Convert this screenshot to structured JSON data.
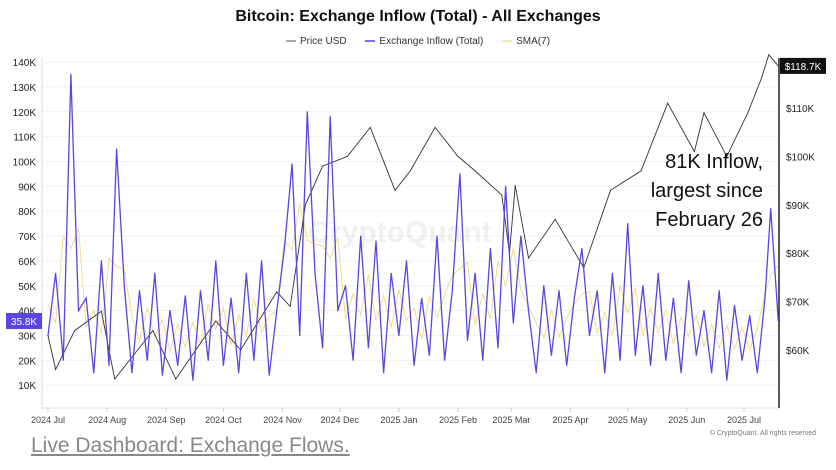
{
  "chart_data": {
    "type": "line",
    "title": "Bitcoin: Exchange Inflow (Total) - All Exchanges",
    "legend": [
      "Price USD",
      "Exchange Inflow (Total)",
      "SMA(7)"
    ],
    "legend_placement": "top-center",
    "colors": {
      "price": "#333333",
      "inflow": "#5b45e0",
      "sma": "#f0dc8c"
    },
    "grid": true,
    "x_ticks": [
      "2024 Jul",
      "2024 Aug",
      "2024 Sep",
      "2024 Oct",
      "2024 Nov",
      "2024 Dec",
      "2025 Jan",
      "2025 Feb",
      "2025 Mar",
      "2025 Apr",
      "2025 May",
      "2025 Jun",
      "2025 Jul"
    ],
    "x_tick_dates": [
      "2024-07-01",
      "2024-08-01",
      "2024-09-01",
      "2024-10-01",
      "2024-11-01",
      "2024-12-01",
      "2025-01-01",
      "2025-02-01",
      "2025-03-01",
      "2025-04-01",
      "2025-05-01",
      "2025-06-01",
      "2025-07-01"
    ],
    "y_left_ticks": [
      "10K",
      "20K",
      "30K",
      "40K",
      "50K",
      "60K",
      "70K",
      "80K",
      "90K",
      "100K",
      "110K",
      "120K",
      "130K",
      "140K"
    ],
    "y_left_range": [
      0,
      140000
    ],
    "y_right_ticks": [
      "$60K",
      "$70K",
      "$80K",
      "$90K",
      "$100K",
      "$110K"
    ],
    "y_right_range": [
      53000,
      126000
    ],
    "current_inflow_label": "35.8K",
    "current_price_label": "$118.7K",
    "series": [
      {
        "name": "Exchange Inflow (Total)",
        "axis": "left",
        "points": [
          [
            "2024-07-01",
            30000
          ],
          [
            "2024-07-05",
            55000
          ],
          [
            "2024-07-09",
            20000
          ],
          [
            "2024-07-13",
            135000
          ],
          [
            "2024-07-17",
            40000
          ],
          [
            "2024-07-21",
            45000
          ],
          [
            "2024-07-25",
            15000
          ],
          [
            "2024-07-29",
            60000
          ],
          [
            "2024-08-02",
            18000
          ],
          [
            "2024-08-06",
            105000
          ],
          [
            "2024-08-10",
            50000
          ],
          [
            "2024-08-14",
            15000
          ],
          [
            "2024-08-18",
            48000
          ],
          [
            "2024-08-22",
            20000
          ],
          [
            "2024-08-26",
            55000
          ],
          [
            "2024-08-30",
            14000
          ],
          [
            "2024-09-03",
            40000
          ],
          [
            "2024-09-07",
            18000
          ],
          [
            "2024-09-11",
            46000
          ],
          [
            "2024-09-15",
            12000
          ],
          [
            "2024-09-19",
            48000
          ],
          [
            "2024-09-23",
            20000
          ],
          [
            "2024-09-27",
            60000
          ],
          [
            "2024-10-01",
            18000
          ],
          [
            "2024-10-05",
            45000
          ],
          [
            "2024-10-09",
            15000
          ],
          [
            "2024-10-13",
            55000
          ],
          [
            "2024-10-17",
            20000
          ],
          [
            "2024-10-21",
            60000
          ],
          [
            "2024-10-25",
            14000
          ],
          [
            "2024-10-29",
            40000
          ],
          [
            "2024-11-02",
            65000
          ],
          [
            "2024-11-06",
            99000
          ],
          [
            "2024-11-10",
            30000
          ],
          [
            "2024-11-14",
            120000
          ],
          [
            "2024-11-18",
            55000
          ],
          [
            "2024-11-22",
            25000
          ],
          [
            "2024-11-26",
            118000
          ],
          [
            "2024-11-30",
            40000
          ],
          [
            "2024-12-04",
            50000
          ],
          [
            "2024-12-08",
            20000
          ],
          [
            "2024-12-12",
            70000
          ],
          [
            "2024-12-16",
            25000
          ],
          [
            "2024-12-20",
            68000
          ],
          [
            "2024-12-24",
            15000
          ],
          [
            "2024-12-28",
            55000
          ],
          [
            "2025-01-01",
            30000
          ],
          [
            "2025-01-05",
            60000
          ],
          [
            "2025-01-09",
            18000
          ],
          [
            "2025-01-13",
            45000
          ],
          [
            "2025-01-17",
            22000
          ],
          [
            "2025-01-21",
            70000
          ],
          [
            "2025-01-25",
            20000
          ],
          [
            "2025-01-29",
            48000
          ],
          [
            "2025-02-02",
            95000
          ],
          [
            "2025-02-06",
            28000
          ],
          [
            "2025-02-10",
            55000
          ],
          [
            "2025-02-14",
            20000
          ],
          [
            "2025-02-18",
            65000
          ],
          [
            "2025-02-22",
            25000
          ],
          [
            "2025-02-26",
            90000
          ],
          [
            "2025-03-02",
            35000
          ],
          [
            "2025-03-06",
            70000
          ],
          [
            "2025-03-10",
            40000
          ],
          [
            "2025-03-14",
            15000
          ],
          [
            "2025-03-18",
            50000
          ],
          [
            "2025-03-22",
            22000
          ],
          [
            "2025-03-26",
            48000
          ],
          [
            "2025-03-30",
            18000
          ],
          [
            "2025-04-03",
            45000
          ],
          [
            "2025-04-07",
            65000
          ],
          [
            "2025-04-11",
            30000
          ],
          [
            "2025-04-15",
            48000
          ],
          [
            "2025-04-19",
            15000
          ],
          [
            "2025-04-23",
            55000
          ],
          [
            "2025-04-27",
            20000
          ],
          [
            "2025-05-01",
            75000
          ],
          [
            "2025-05-05",
            22000
          ],
          [
            "2025-05-09",
            50000
          ],
          [
            "2025-05-13",
            18000
          ],
          [
            "2025-05-17",
            55000
          ],
          [
            "2025-05-21",
            20000
          ],
          [
            "2025-05-25",
            45000
          ],
          [
            "2025-05-29",
            15000
          ],
          [
            "2025-06-02",
            52000
          ],
          [
            "2025-06-06",
            22000
          ],
          [
            "2025-06-10",
            40000
          ],
          [
            "2025-06-14",
            15000
          ],
          [
            "2025-06-18",
            48000
          ],
          [
            "2025-06-22",
            12000
          ],
          [
            "2025-06-26",
            42000
          ],
          [
            "2025-06-30",
            20000
          ],
          [
            "2025-07-04",
            38000
          ],
          [
            "2025-07-08",
            15000
          ],
          [
            "2025-07-12",
            45000
          ],
          [
            "2025-07-15",
            81000
          ],
          [
            "2025-07-19",
            35800
          ]
        ]
      },
      {
        "name": "Price USD",
        "axis": "right",
        "points": [
          [
            "2024-07-01",
            63000
          ],
          [
            "2024-07-05",
            56000
          ],
          [
            "2024-07-15",
            64000
          ],
          [
            "2024-07-29",
            68000
          ],
          [
            "2024-08-05",
            54000
          ],
          [
            "2024-08-25",
            64000
          ],
          [
            "2024-09-06",
            54000
          ],
          [
            "2024-09-27",
            66000
          ],
          [
            "2024-10-10",
            60000
          ],
          [
            "2024-10-29",
            72000
          ],
          [
            "2024-11-05",
            69000
          ],
          [
            "2024-11-13",
            90000
          ],
          [
            "2024-11-22",
            98000
          ],
          [
            "2024-12-05",
            100000
          ],
          [
            "2024-12-17",
            106000
          ],
          [
            "2024-12-30",
            93000
          ],
          [
            "2025-01-07",
            97000
          ],
          [
            "2025-01-20",
            106000
          ],
          [
            "2025-02-01",
            100000
          ],
          [
            "2025-02-10",
            97000
          ],
          [
            "2025-02-24",
            92000
          ],
          [
            "2025-02-28",
            80000
          ],
          [
            "2025-03-03",
            94000
          ],
          [
            "2025-03-10",
            79000
          ],
          [
            "2025-03-24",
            87000
          ],
          [
            "2025-04-08",
            77000
          ],
          [
            "2025-04-22",
            93000
          ],
          [
            "2025-05-08",
            97000
          ],
          [
            "2025-05-22",
            111000
          ],
          [
            "2025-06-05",
            101000
          ],
          [
            "2025-06-10",
            109000
          ],
          [
            "2025-06-22",
            100000
          ],
          [
            "2025-07-03",
            109000
          ],
          [
            "2025-07-10",
            116000
          ],
          [
            "2025-07-14",
            121000
          ],
          [
            "2025-07-19",
            118700
          ]
        ]
      },
      {
        "name": "SMA(7)",
        "axis": "left",
        "derived_from": "Exchange Inflow (Total)"
      }
    ]
  },
  "annotation": {
    "line1": "81K Inflow,",
    "line2": "largest since",
    "line3": "February 26"
  },
  "watermark": "CryptoQuant",
  "footer": {
    "link": "Live Dashboard: Exchange Flows.",
    "copyright": "© CryptoQuant. All rights reserved"
  }
}
